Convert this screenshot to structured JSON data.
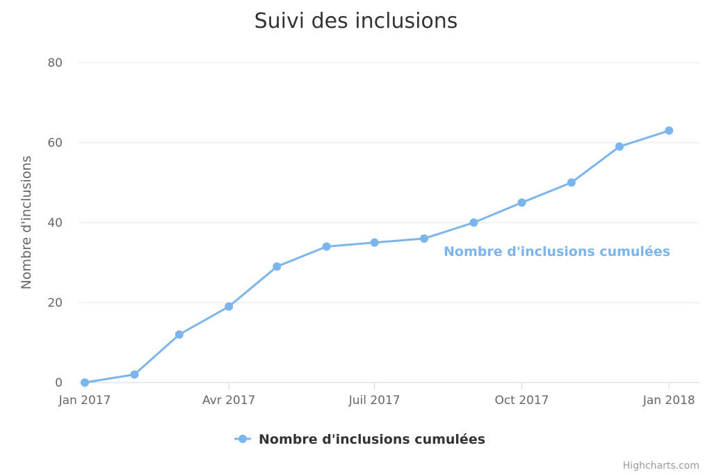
{
  "chart_data": {
    "type": "line",
    "title": "Suivi des inclusions",
    "xlabel": "",
    "ylabel": "Nombre d'inclusions",
    "x_tick_labels": [
      "Jan 2017",
      "Avr 2017",
      "Juil 2017",
      "Oct 2017",
      "Jan 2018"
    ],
    "x_tick_dates": [
      "2017-01-01",
      "2017-04-01",
      "2017-07-01",
      "2017-10-01",
      "2018-01-01"
    ],
    "x_range": [
      "2017-01-01",
      "2018-01-20"
    ],
    "y_ticks": [
      0,
      20,
      40,
      60,
      80
    ],
    "ylim": [
      0,
      80
    ],
    "grid": true,
    "legend_position": "bottom-center",
    "series": [
      {
        "name": "Nombre d'inclusions cumulées",
        "color": "#7cb5ec",
        "data_label": "Nombre d'inclusions cumulées",
        "x": [
          "2017-01-01",
          "2017-02-01",
          "2017-03-01",
          "2017-04-01",
          "2017-05-01",
          "2017-06-01",
          "2017-07-01",
          "2017-08-01",
          "2017-09-01",
          "2017-10-01",
          "2017-11-01",
          "2017-12-01",
          "2018-01-01"
        ],
        "y": [
          0,
          2,
          12,
          19,
          29,
          34,
          35,
          36,
          40,
          45,
          50,
          59,
          63
        ]
      }
    ],
    "credits": "Highcharts.com"
  }
}
